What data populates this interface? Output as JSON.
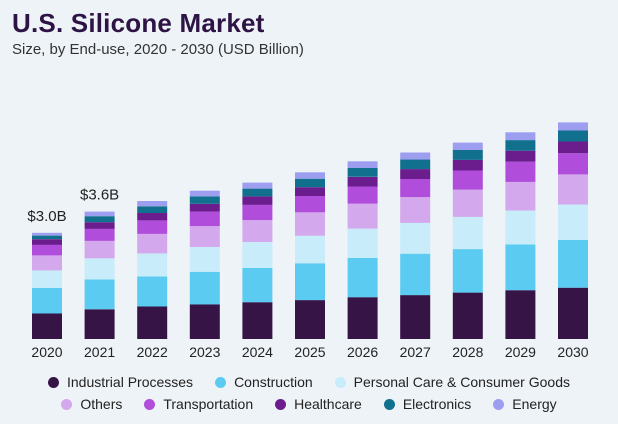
{
  "header": {
    "title": "U.S. Silicone Market",
    "subtitle": "Size, by End-use, 2020 - 2030 (USD Billion)"
  },
  "chart_data": {
    "type": "bar",
    "stacked": true,
    "title": "U.S. Silicone Market",
    "subtitle": "Size, by End-use, 2020 - 2030 (USD Billion)",
    "xlabel": "",
    "ylabel": "",
    "ylim": [
      0,
      7.6
    ],
    "categories": [
      "2020",
      "2021",
      "2022",
      "2023",
      "2024",
      "2025",
      "2026",
      "2027",
      "2028",
      "2029",
      "2030"
    ],
    "series": [
      {
        "name": "Industrial Processes",
        "color": "#361446",
        "values": [
          0.72,
          0.84,
          0.92,
          0.98,
          1.04,
          1.1,
          1.18,
          1.24,
          1.31,
          1.38,
          1.45
        ]
      },
      {
        "name": "Construction",
        "color": "#5ccbf2",
        "values": [
          0.72,
          0.84,
          0.85,
          0.92,
          0.97,
          1.04,
          1.11,
          1.17,
          1.23,
          1.29,
          1.35
        ]
      },
      {
        "name": "Personal Care & Consumer Goods",
        "color": "#c8ecfa",
        "values": [
          0.5,
          0.6,
          0.65,
          0.7,
          0.73,
          0.78,
          0.83,
          0.87,
          0.91,
          0.96,
          1.0
        ]
      },
      {
        "name": "Others",
        "color": "#d3a8ec",
        "values": [
          0.42,
          0.49,
          0.55,
          0.59,
          0.62,
          0.66,
          0.7,
          0.73,
          0.77,
          0.81,
          0.85
        ]
      },
      {
        "name": "Transportation",
        "color": "#b04ddb",
        "values": [
          0.3,
          0.34,
          0.38,
          0.41,
          0.43,
          0.46,
          0.49,
          0.51,
          0.54,
          0.57,
          0.6
        ]
      },
      {
        "name": "Healthcare",
        "color": "#6b1d8e",
        "values": [
          0.16,
          0.19,
          0.21,
          0.22,
          0.24,
          0.25,
          0.27,
          0.28,
          0.3,
          0.31,
          0.33
        ]
      },
      {
        "name": "Electronics",
        "color": "#12708f",
        "values": [
          0.1,
          0.17,
          0.19,
          0.21,
          0.22,
          0.24,
          0.25,
          0.27,
          0.28,
          0.3,
          0.31
        ]
      },
      {
        "name": "Energy",
        "color": "#9d9ef0",
        "values": [
          0.08,
          0.13,
          0.15,
          0.16,
          0.17,
          0.18,
          0.19,
          0.2,
          0.21,
          0.22,
          0.23
        ]
      }
    ],
    "annotations": [
      {
        "category": "2020",
        "text": "$3.0B"
      },
      {
        "category": "2021",
        "text": "$3.6B"
      }
    ]
  }
}
